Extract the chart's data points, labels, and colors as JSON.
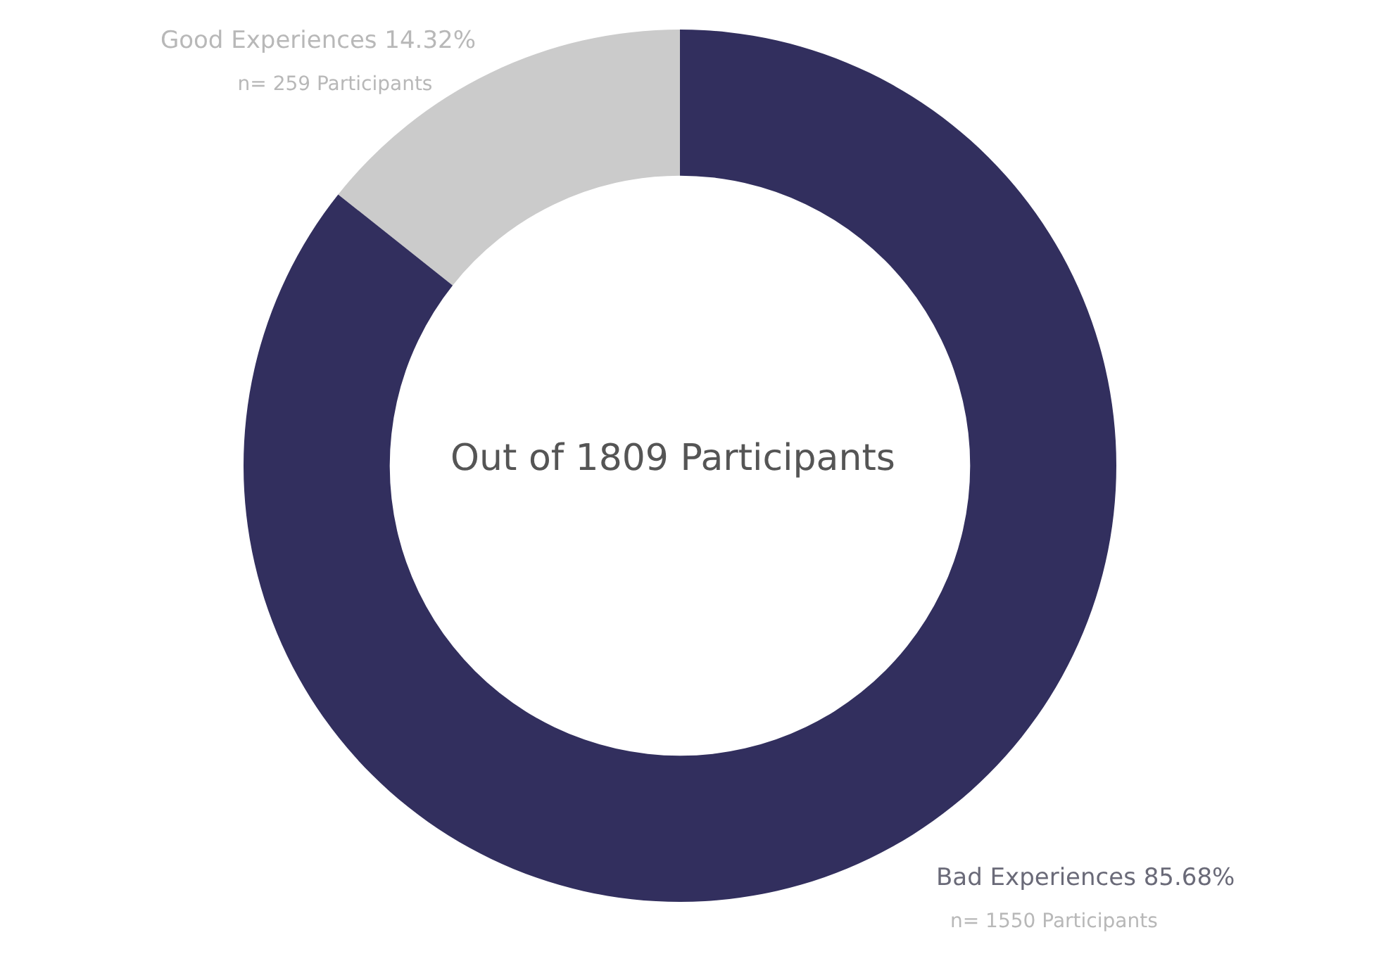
{
  "chart_data": {
    "type": "donut",
    "categories": [
      "Good Experiences",
      "Bad Experiences"
    ],
    "values": [
      14.32,
      85.68
    ],
    "colors": [
      "#cbcbcb",
      "#322f5e"
    ],
    "value_labels": [
      "14.32%",
      "85.68%"
    ],
    "annotations": [
      "n= 259 Participants",
      "n= 1550 Participants",
      "Out of 1809 Participants"
    ],
    "legend": false
  }
}
